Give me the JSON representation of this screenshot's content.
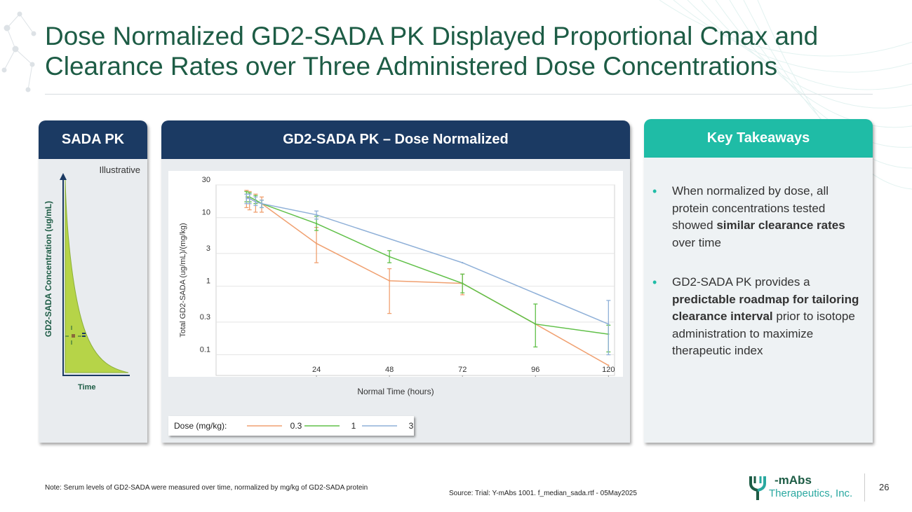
{
  "title": {
    "line1": "Dose Normalized GD2-SADA PK Displayed Proportional Cmax and",
    "line2": "Clearance Rates over Three Administered Dose Concentrations"
  },
  "sada_panel": {
    "header": "SADA PK",
    "illustrative": "Illustrative",
    "ylabel": "GD2-SADA Concentration (ug/mL)",
    "xlabel": "Time"
  },
  "chart_panel": {
    "header": "GD2-SADA PK – Dose Normalized"
  },
  "chart_data": {
    "type": "line",
    "title": "GD2-SADA PK – Dose Normalized",
    "xlabel": "Normal Time (hours)",
    "ylabel": "Total GD2-SADA (ug/mL)/(mg/kg)",
    "yscale": "log",
    "ylim": [
      0.05,
      30
    ],
    "xlim": [
      -9,
      122
    ],
    "yticks": [
      "30",
      "10",
      "3",
      "1",
      "0.3",
      "0.1"
    ],
    "ytick_values": [
      30,
      10,
      3,
      1,
      0.3,
      0.1
    ],
    "xticks": [
      "24",
      "48",
      "72",
      "96",
      "120"
    ],
    "xtick_values": [
      24,
      48,
      72,
      96,
      120
    ],
    "legend_title": "Dose (mg/kg):",
    "series": [
      {
        "name": "0.3",
        "color": "#f0a070",
        "x": [
          1,
          2,
          4,
          6,
          24,
          48,
          72,
          96,
          120
        ],
        "y": [
          20,
          19,
          17,
          16,
          4.2,
          1.2,
          1.1,
          0.28,
          0.07
        ],
        "err_low": [
          14,
          13,
          12,
          12,
          2.2,
          0.4,
          0.75,
          0.28,
          0.07
        ],
        "err_high": [
          25,
          24,
          22,
          20,
          7.2,
          1.8,
          1.5,
          0.28,
          0.07
        ]
      },
      {
        "name": "1",
        "color": "#60c048",
        "x": [
          1,
          2,
          4,
          6,
          24,
          48,
          72,
          96,
          120
        ],
        "y": [
          20,
          20,
          18,
          16,
          8.2,
          2.7,
          1.1,
          0.28,
          0.2
        ],
        "err_low": [
          17,
          17,
          16,
          14,
          6.5,
          2.2,
          0.8,
          0.13,
          0.11
        ],
        "err_high": [
          24,
          23,
          21,
          18,
          10.5,
          3.3,
          1.5,
          0.55,
          0.27
        ]
      },
      {
        "name": "3",
        "color": "#8fb0d8",
        "x": [
          1,
          2,
          4,
          6,
          24,
          72,
          120
        ],
        "y": [
          19,
          19,
          17,
          16,
          11,
          2.2,
          0.28
        ],
        "err_low": [
          16,
          16,
          15,
          14,
          9.5,
          2.2,
          0.1
        ],
        "err_high": [
          22,
          22,
          20,
          18,
          12.5,
          2.2,
          0.62
        ]
      }
    ]
  },
  "takeaways": {
    "header": "Key Takeaways",
    "b1_pre": "When normalized by dose, all protein concentrations tested showed ",
    "b1_bold": "similar clearance rates",
    "b1_post": " over time",
    "b2_pre": "GD2-SADA PK provides a ",
    "b2_bold": "predictable roadmap for tailoring clearance interval",
    "b2_post": " prior to isotope administration to maximize therapeutic index"
  },
  "footer": {
    "note": "Note: Serum levels of GD2-SADA were measured over time, normalized by mg/kg of GD2-SADA protein",
    "source": "Source: Trial: Y-mAbs 1001. f_median_sada.rtf - 05May2025",
    "logo_name": "-mAbs",
    "logo_company": "Therapeutics, Inc.",
    "page_number": "26"
  },
  "colors": {
    "title_green": "#1d5c45",
    "navy": "#1b3a63",
    "teal": "#1fbca6"
  }
}
